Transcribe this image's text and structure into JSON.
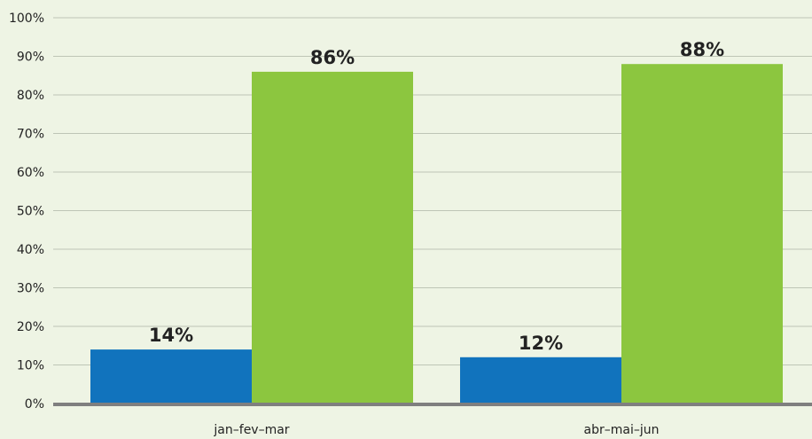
{
  "chart_data": {
    "type": "bar",
    "categories": [
      "jan–fev–mar",
      "abr–mai–jun"
    ],
    "series": [
      {
        "values": [
          14,
          12
        ],
        "data_labels": [
          "14%",
          "12%"
        ],
        "color": "#1173BD"
      },
      {
        "values": [
          86,
          88
        ],
        "data_labels": [
          "86%",
          "88%"
        ],
        "color": "#8CC63F"
      }
    ],
    "ylim": [
      0,
      100
    ],
    "yticks": [
      0,
      10,
      20,
      30,
      40,
      50,
      60,
      70,
      80,
      90,
      100
    ],
    "ytick_labels": [
      "0%",
      "10%",
      "20%",
      "30%",
      "40%",
      "50%",
      "60%",
      "70%",
      "80%",
      "90%",
      "100%"
    ],
    "grid": true,
    "legend": "none",
    "colors": {
      "background": "#EEF4E4",
      "gridline": "#BEC5B6",
      "baseline": "#7F7F7F",
      "text": "#222222"
    }
  }
}
